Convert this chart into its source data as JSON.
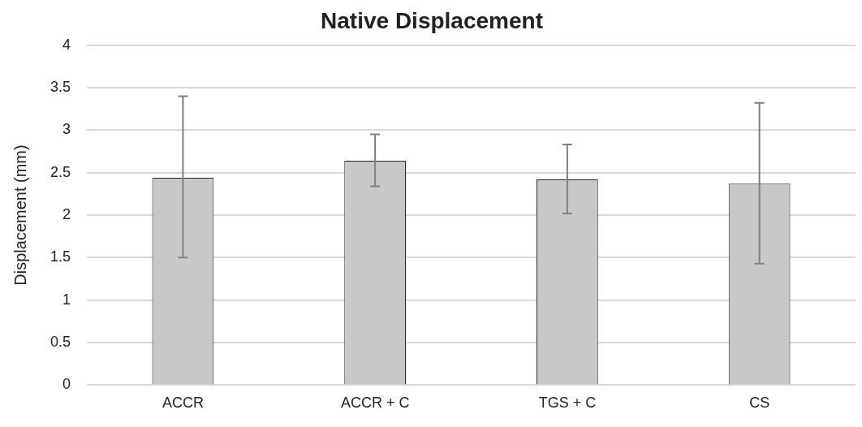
{
  "chart_data": {
    "type": "bar",
    "title": "Native Displacement",
    "ylabel": "Displacement (mm)",
    "categories": [
      "ACCR",
      "ACCR + C",
      "TGS + C",
      "CS"
    ],
    "values": [
      2.44,
      2.64,
      2.42,
      2.37
    ],
    "errors": [
      [
        1.5,
        3.4
      ],
      [
        2.34,
        2.95
      ],
      [
        2.02,
        2.83
      ],
      [
        1.43,
        3.32
      ]
    ],
    "color": "#c8c8c8",
    "ylim": [
      0,
      4
    ],
    "yticks": [
      0,
      0.5,
      1,
      1.5,
      2,
      2.5,
      3,
      3.5,
      4
    ],
    "grid": "y",
    "legend": false
  }
}
